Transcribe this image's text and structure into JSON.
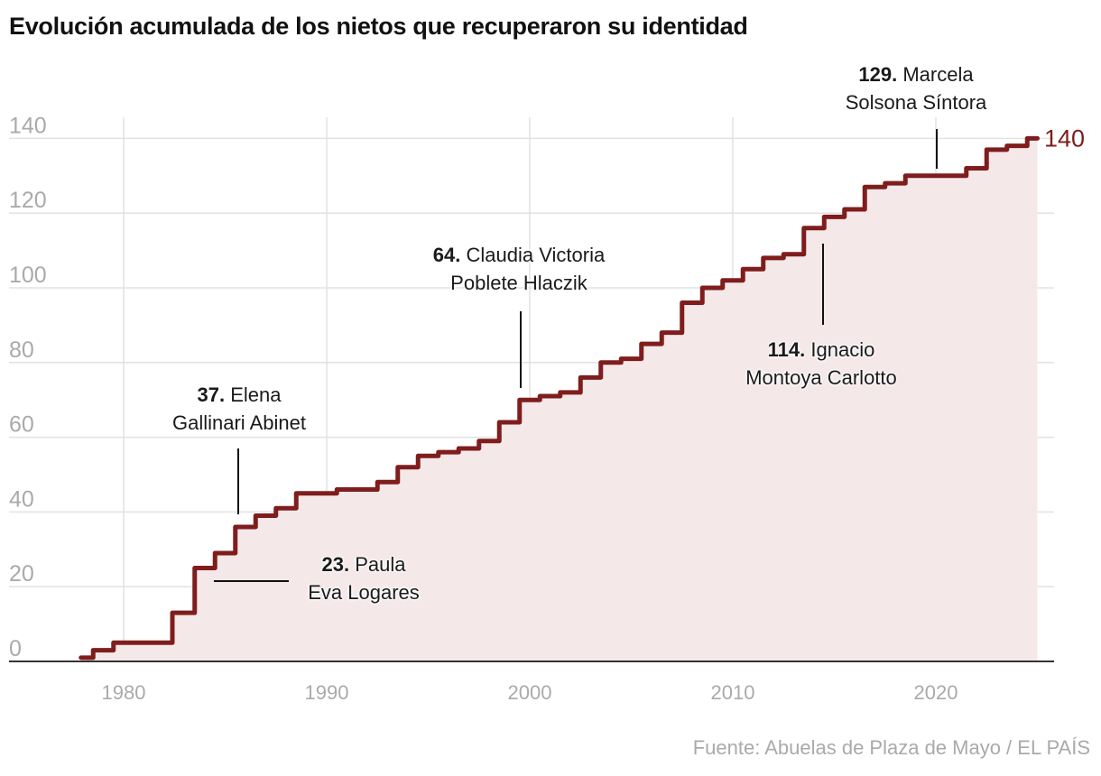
{
  "chart_data": {
    "type": "line",
    "step": true,
    "title": "Evolución acumulada de los nietos que recuperaron su identidad",
    "source": "Fuente: Abuelas de Plaza de Mayo / EL PAÍS",
    "xlim": [
      1976,
      2026
    ],
    "ylim": [
      0,
      140
    ],
    "xticks": [
      "1980",
      "1990",
      "2000",
      "2010",
      "2020"
    ],
    "yticks": [
      "0",
      "20",
      "40",
      "60",
      "80",
      "100",
      "120",
      "140"
    ],
    "grid": true,
    "area_fill": true,
    "end_label": "140",
    "colors": {
      "line": "#7f1d1d",
      "fill": "#f4e8e9",
      "grid": "#e2e2e2",
      "tick": "#aaa"
    },
    "points": [
      [
        1977.9,
        1
      ],
      [
        1978.5,
        3
      ],
      [
        1979.5,
        5
      ],
      [
        1982.4,
        13
      ],
      [
        1983.5,
        25
      ],
      [
        1984.5,
        29
      ],
      [
        1985.5,
        36
      ],
      [
        1986.5,
        39
      ],
      [
        1987.5,
        41
      ],
      [
        1988.5,
        45
      ],
      [
        1990.5,
        46
      ],
      [
        1992.5,
        48
      ],
      [
        1993.5,
        52
      ],
      [
        1994.5,
        55
      ],
      [
        1995.5,
        56
      ],
      [
        1996.5,
        57
      ],
      [
        1997.5,
        59
      ],
      [
        1998.5,
        64
      ],
      [
        1999.5,
        70
      ],
      [
        2000.5,
        71
      ],
      [
        2001.5,
        72
      ],
      [
        2002.5,
        76
      ],
      [
        2003.5,
        80
      ],
      [
        2004.5,
        81
      ],
      [
        2005.5,
        85
      ],
      [
        2006.5,
        88
      ],
      [
        2007.5,
        96
      ],
      [
        2008.5,
        100
      ],
      [
        2009.5,
        102
      ],
      [
        2010.5,
        105
      ],
      [
        2011.5,
        108
      ],
      [
        2012.5,
        109
      ],
      [
        2013.5,
        116
      ],
      [
        2014.5,
        119
      ],
      [
        2015.5,
        121
      ],
      [
        2016.5,
        127
      ],
      [
        2017.5,
        128
      ],
      [
        2018.5,
        130
      ],
      [
        2021.5,
        132
      ],
      [
        2022.5,
        137
      ],
      [
        2023.5,
        138
      ],
      [
        2024.5,
        140
      ],
      [
        2025.0,
        140
      ]
    ],
    "annotations": [
      {
        "num": "23.",
        "line1": "Paula",
        "line2": "Eva Logares"
      },
      {
        "num": "37.",
        "line1": "Elena",
        "line2": "Gallinari Abinet"
      },
      {
        "num": "64.",
        "line1": "Claudia Victoria",
        "line2": "Poblete Hlaczik"
      },
      {
        "num": "114.",
        "line1": "Ignacio",
        "line2": "Montoya Carlotto"
      },
      {
        "num": "129.",
        "line1": "Marcela",
        "line2": "Solsona Síntora"
      }
    ]
  }
}
